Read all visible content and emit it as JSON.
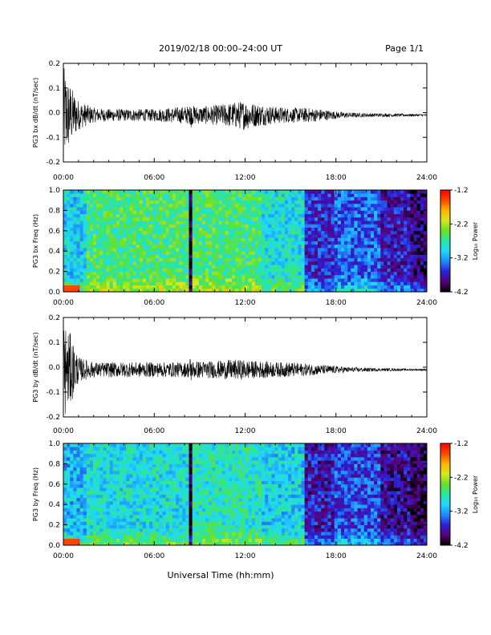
{
  "header": {
    "title": "2019/02/18  00:00–24:00 UT",
    "page": "Page 1/1"
  },
  "footer": {
    "xlabel": "Universal Time (hh:mm)"
  },
  "colorbar": {
    "ticks": [
      "-1.2",
      "-2.2",
      "-3.2",
      "-4.2"
    ],
    "label": "Log₁₀ Power",
    "colors": [
      "#000000",
      "#5a007a",
      "#2b1fd6",
      "#1f8cff",
      "#20d8ff",
      "#28e6a0",
      "#6be02a",
      "#d7e81c",
      "#ffb400",
      "#ff4400",
      "#ff0000"
    ]
  },
  "x_ticks": [
    "00:00",
    "06:00",
    "12:00",
    "18:00",
    "24:00"
  ],
  "chart_data": [
    {
      "type": "line",
      "ylabel": "PG3 bx dB/dt (nT/sec)",
      "ylim": [
        -0.2,
        0.2
      ],
      "yticks": [
        "0.2",
        "0.1",
        "0.0",
        "-0.1",
        "-0.2"
      ],
      "x_unit": "hours UT",
      "series": [
        {
          "x": [
            0,
            0.5,
            1,
            2,
            3,
            4,
            5,
            6,
            7,
            8,
            8.5,
            9,
            10,
            11,
            12,
            12.5,
            13,
            14,
            15,
            16,
            17,
            18,
            19,
            20,
            21,
            22,
            23,
            24
          ],
          "y_envelope": [
            0.2,
            0.12,
            0.06,
            0.03,
            0.025,
            0.025,
            0.025,
            0.025,
            0.03,
            0.035,
            0.04,
            0.035,
            0.04,
            0.05,
            0.06,
            0.05,
            0.045,
            0.035,
            0.03,
            0.03,
            0.025,
            0.015,
            0.01,
            0.008,
            0.007,
            0.006,
            0.005,
            0.004
          ],
          "baseline": -0.01
        }
      ]
    },
    {
      "type": "heatmap",
      "ylabel": "PG3 bx Freq (Hz)",
      "ylim": [
        0,
        1.0
      ],
      "yticks": [
        "1.0",
        "0.8",
        "0.6",
        "0.4",
        "0.2",
        "0.0"
      ],
      "zlim": [
        -4.2,
        -1.2
      ],
      "bands": [
        {
          "from": 0,
          "to": 1.5,
          "log_power": -3.0
        },
        {
          "from": 1.5,
          "to": 8.3,
          "log_power": -2.6
        },
        {
          "from": 8.3,
          "to": 8.5,
          "log_power": -4.2
        },
        {
          "from": 8.5,
          "to": 13,
          "log_power": -2.6
        },
        {
          "from": 13,
          "to": 16,
          "log_power": -2.9
        },
        {
          "from": 16,
          "to": 18,
          "log_power": -3.6
        },
        {
          "from": 18,
          "to": 21,
          "log_power": -3.4
        },
        {
          "from": 21,
          "to": 23,
          "log_power": -3.7
        },
        {
          "from": 23,
          "to": 24,
          "log_power": -3.9
        }
      ]
    },
    {
      "type": "line",
      "ylabel": "PG3 by dB/dt (nT/sec)",
      "ylim": [
        -0.2,
        0.2
      ],
      "yticks": [
        "0.2",
        "0.1",
        "0.0",
        "-0.1",
        "-0.2"
      ],
      "x_unit": "hours UT",
      "series": [
        {
          "x": [
            0,
            0.5,
            1,
            2,
            3,
            4,
            5,
            6,
            7,
            8,
            8.5,
            9,
            10,
            11,
            12,
            12.5,
            13,
            14,
            15,
            16,
            17,
            18,
            19,
            20,
            21,
            22,
            23,
            24
          ],
          "y_envelope": [
            0.2,
            0.14,
            0.05,
            0.03,
            0.03,
            0.03,
            0.03,
            0.03,
            0.03,
            0.03,
            0.035,
            0.035,
            0.035,
            0.04,
            0.04,
            0.035,
            0.035,
            0.03,
            0.03,
            0.025,
            0.02,
            0.015,
            0.01,
            0.008,
            0.006,
            0.005,
            0.004,
            0.004
          ],
          "baseline": -0.01
        }
      ]
    },
    {
      "type": "heatmap",
      "ylabel": "PG3 by Freq (Hz)",
      "ylim": [
        0,
        1.0
      ],
      "yticks": [
        "1.0",
        "0.8",
        "0.6",
        "0.4",
        "0.2",
        "0.0"
      ],
      "zlim": [
        -4.2,
        -1.2
      ],
      "bands": [
        {
          "from": 0,
          "to": 1.5,
          "log_power": -3.1
        },
        {
          "from": 1.5,
          "to": 8.3,
          "log_power": -2.9
        },
        {
          "from": 8.3,
          "to": 8.5,
          "log_power": -4.2
        },
        {
          "from": 8.5,
          "to": 13,
          "log_power": -2.8
        },
        {
          "from": 13,
          "to": 16,
          "log_power": -3.0
        },
        {
          "from": 16,
          "to": 18,
          "log_power": -3.7
        },
        {
          "from": 18,
          "to": 21,
          "log_power": -3.5
        },
        {
          "from": 21,
          "to": 23,
          "log_power": -3.8
        },
        {
          "from": 23,
          "to": 24,
          "log_power": -4.0
        }
      ]
    }
  ]
}
